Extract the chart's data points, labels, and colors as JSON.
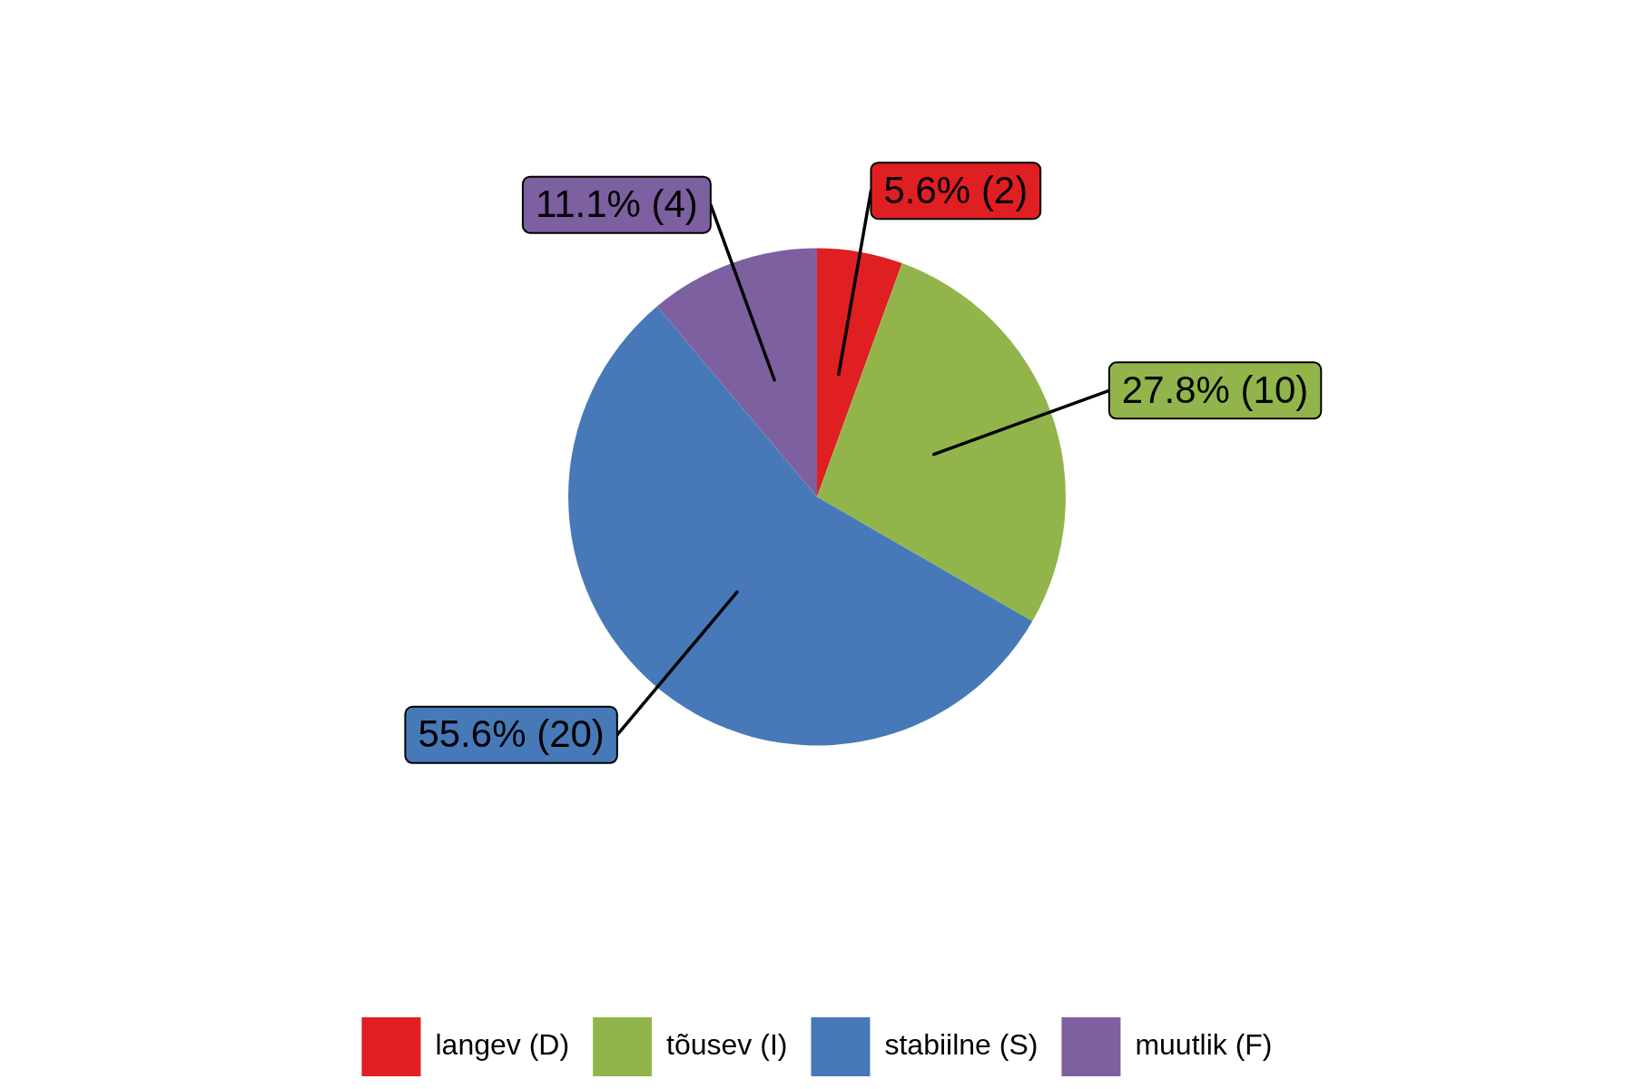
{
  "chart_data": {
    "type": "pie",
    "categories": [
      "langev (D)",
      "tõusev (I)",
      "stabiilne (S)",
      "muutlik (F)"
    ],
    "values": [
      2,
      10,
      20,
      4
    ],
    "colors": [
      "#e01f22",
      "#92b54b",
      "#4779b9",
      "#7d60a0"
    ],
    "value_labels": [
      "5.6% (2)",
      "27.8% (10)",
      "55.6% (20)",
      "11.1% (4)"
    ],
    "legend": "bottom"
  }
}
